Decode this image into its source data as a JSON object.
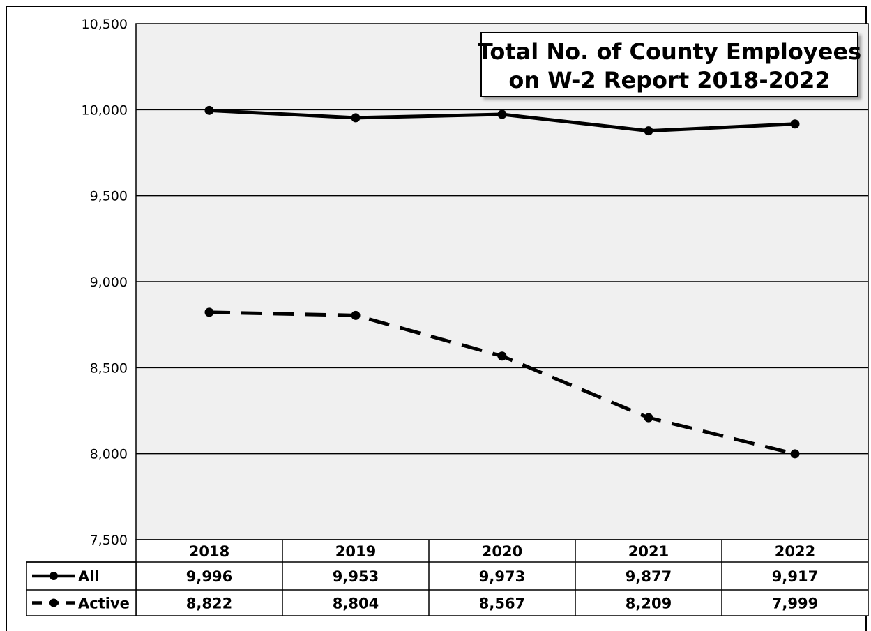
{
  "chart_data": {
    "type": "line",
    "title_lines": [
      "Total No. of County Employees",
      "on W-2 Report 2018-2022"
    ],
    "categories": [
      "2018",
      "2019",
      "2020",
      "2021",
      "2022"
    ],
    "ylim": [
      7500,
      10500
    ],
    "yticks": [
      7500,
      8000,
      8500,
      9000,
      9500,
      10000,
      10500
    ],
    "ytick_labels": [
      "7,500",
      "8,000",
      "8,500",
      "9,000",
      "9,500",
      "10,000",
      "10,500"
    ],
    "grid": true,
    "series": [
      {
        "name": "All",
        "style": "solid",
        "values": [
          9996,
          9953,
          9973,
          9877,
          9917
        ],
        "labels": [
          "9,996",
          "9,953",
          "9,973",
          "9,877",
          "9,917"
        ]
      },
      {
        "name": "Active",
        "style": "dashed",
        "values": [
          8822,
          8804,
          8567,
          8209,
          7999
        ],
        "labels": [
          "8,822",
          "8,804",
          "8,567",
          "8,209",
          "7,999"
        ]
      }
    ],
    "data_table": true
  },
  "colors": {
    "plot_background": "#f0f0f0",
    "line": "#000000",
    "grid": "#000000"
  }
}
